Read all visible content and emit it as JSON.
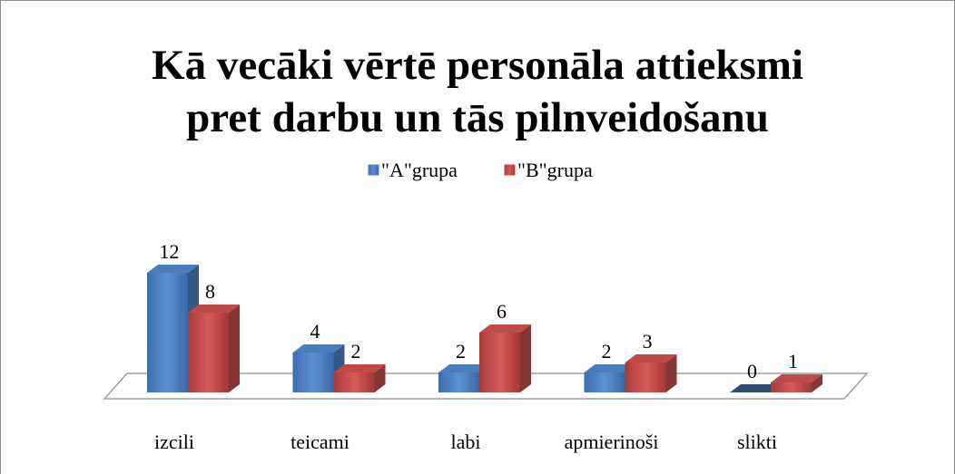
{
  "chart_data": {
    "type": "bar3d",
    "title": [
      "Kā vecāki vērtē personāla attieksmi",
      "pret darbu un tās pilnveidošanu"
    ],
    "categories": [
      "izcili",
      "teicami",
      "labi",
      "apmierinoši",
      "slikti"
    ],
    "series": [
      {
        "name": "\"A\"grupa",
        "color": "#4a7ebb",
        "values": [
          12,
          4,
          2,
          2,
          0
        ]
      },
      {
        "name": "\"B\"grupa",
        "color": "#be4b48",
        "values": [
          8,
          2,
          6,
          3,
          1
        ]
      }
    ],
    "legend": "top"
  }
}
